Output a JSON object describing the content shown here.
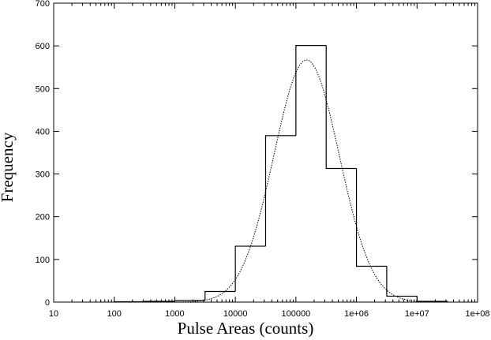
{
  "chart_data": {
    "type": "bar",
    "xlabel": "Pulse Areas (counts)",
    "ylabel": "Frequency",
    "x_scale": "log",
    "xlim": [
      10,
      100000000
    ],
    "ylim": [
      0,
      700
    ],
    "x_ticks": [
      {
        "value": 10,
        "label": "10"
      },
      {
        "value": 100,
        "label": "100"
      },
      {
        "value": 1000,
        "label": "1000"
      },
      {
        "value": 10000,
        "label": "10000"
      },
      {
        "value": 100000,
        "label": "100000"
      },
      {
        "value": 1000000,
        "label": "1e+06"
      },
      {
        "value": 10000000,
        "label": "1e+07"
      },
      {
        "value": 100000000,
        "label": "1e+08"
      }
    ],
    "y_ticks": [
      0,
      100,
      200,
      300,
      400,
      500,
      600,
      700
    ],
    "grid": false,
    "histogram": {
      "bins": [
        {
          "x0": 100,
          "x1": 316.2,
          "value": 1
        },
        {
          "x0": 316.2,
          "x1": 1000,
          "value": 2
        },
        {
          "x0": 1000,
          "x1": 3162,
          "value": 4
        },
        {
          "x0": 3162,
          "x1": 10000,
          "value": 25
        },
        {
          "x0": 10000,
          "x1": 31623,
          "value": 131
        },
        {
          "x0": 31623,
          "x1": 100000,
          "value": 390
        },
        {
          "x0": 100000,
          "x1": 316228,
          "value": 601
        },
        {
          "x0": 316228,
          "x1": 1000000,
          "value": 313
        },
        {
          "x0": 1000000,
          "x1": 3162278,
          "value": 84
        },
        {
          "x0": 3162278,
          "x1": 10000000,
          "value": 14
        },
        {
          "x0": 10000000,
          "x1": 31622777,
          "value": 2
        }
      ]
    },
    "fit_curve": {
      "style": "dotted",
      "shape": "lognormal",
      "peak_x": 150000,
      "peak_y": 567,
      "sigma_decades": 0.54
    }
  }
}
